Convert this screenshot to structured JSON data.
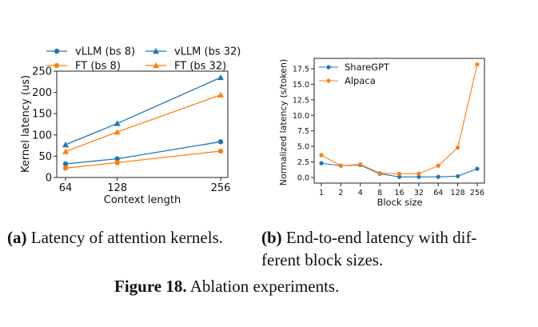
{
  "chart_data": [
    {
      "type": "line",
      "title": "",
      "xlabel": "Context length",
      "ylabel": "Kernel latency (us)",
      "x": [
        64,
        128,
        256
      ],
      "x_tick_labels": [
        "64",
        "128",
        "256"
      ],
      "ylim": [
        0,
        250
      ],
      "y_ticks": [
        0,
        50,
        100,
        150,
        200,
        250
      ],
      "grid": false,
      "legend_placement": "top, outside, 2 columns",
      "series": [
        {
          "name": "vLLM (bs 8)",
          "marker": "circle",
          "color": "#1f77b4",
          "values": [
            32,
            44,
            84
          ]
        },
        {
          "name": "FT (bs 8)",
          "marker": "circle",
          "color": "#ff7f0e",
          "values": [
            22,
            35,
            62
          ]
        },
        {
          "name": "vLLM (bs 32)",
          "marker": "triangle",
          "color": "#1f77b4",
          "values": [
            77,
            127,
            235
          ]
        },
        {
          "name": "FT (bs 32)",
          "marker": "triangle",
          "color": "#ff7f0e",
          "values": [
            61,
            107,
            194
          ]
        }
      ]
    },
    {
      "type": "line",
      "title": "",
      "xlabel": "Block size",
      "ylabel": "Normalized latency (s/token)",
      "categories": [
        "1",
        "2",
        "4",
        "8",
        "16",
        "32",
        "64",
        "128",
        "256"
      ],
      "ylim": [
        -0.9,
        19.2
      ],
      "y_ticks": [
        0.0,
        2.5,
        5.0,
        7.5,
        10.0,
        12.5,
        15.0,
        17.5
      ],
      "y_tick_labels": [
        "0.0",
        "2.5",
        "5.0",
        "7.5",
        "10.0",
        "12.5",
        "15.0",
        "17.5"
      ],
      "grid": false,
      "legend_placement": "top-left",
      "series": [
        {
          "name": "ShareGPT",
          "marker": "circle",
          "color": "#1f77b4",
          "values": [
            2.3,
            1.9,
            2.0,
            0.6,
            0.1,
            0.1,
            0.1,
            0.2,
            1.4
          ]
        },
        {
          "name": "Alpaca",
          "marker": "circle",
          "color": "#ff7f0e",
          "values": [
            3.6,
            1.9,
            2.1,
            0.7,
            0.6,
            0.6,
            1.9,
            4.8,
            18.2
          ]
        }
      ]
    }
  ],
  "captions": {
    "a_label": "(a)",
    "a_text": "Latency of attention kernels.",
    "b_label": "(b)",
    "b_text_line1": "End-to-end latency with dif-",
    "b_text_line2": "ferent block sizes.",
    "figure_label": "Figure 18.",
    "figure_text": "Ablation experiments."
  }
}
